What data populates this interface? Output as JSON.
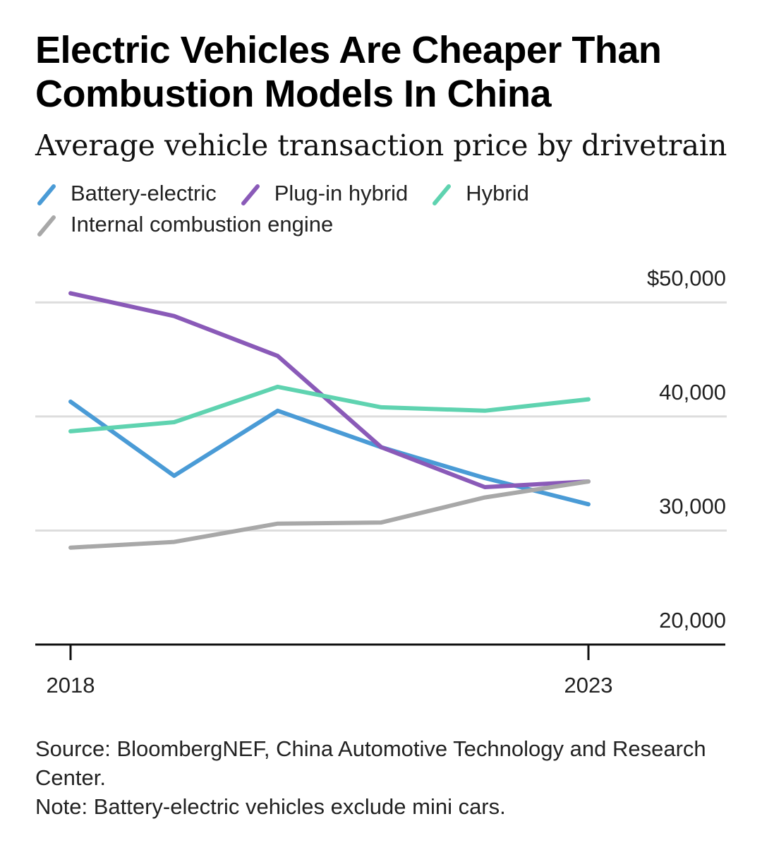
{
  "title": "Electric Vehicles Are Cheaper Than Combustion Models In China",
  "subtitle": "Average vehicle transaction price by drivetrain",
  "legend": [
    {
      "name": "Battery-electric",
      "color": "#4a9bd6"
    },
    {
      "name": "Plug-in hybrid",
      "color": "#8a5ab8"
    },
    {
      "name": "Hybrid",
      "color": "#5fd3b0"
    },
    {
      "name": "Internal combustion engine",
      "color": "#a8a8a8"
    }
  ],
  "chart_data": {
    "type": "line",
    "x": [
      2018,
      2019,
      2020,
      2021,
      2022,
      2023
    ],
    "x_tick_labels": [
      "2018",
      "2023"
    ],
    "y_tick_labels": [
      "$50,000",
      "40,000",
      "30,000",
      "20,000"
    ],
    "y_ticks": [
      50000,
      40000,
      30000,
      20000
    ],
    "ylim": [
      20000,
      52000
    ],
    "series": [
      {
        "name": "Battery-electric",
        "color": "#4a9bd6",
        "values": [
          41300,
          34800,
          40500,
          37300,
          34600,
          32300
        ]
      },
      {
        "name": "Plug-in hybrid",
        "color": "#8a5ab8",
        "values": [
          50800,
          48800,
          45300,
          37300,
          33800,
          34300
        ]
      },
      {
        "name": "Hybrid",
        "color": "#5fd3b0",
        "values": [
          38700,
          39500,
          42600,
          40800,
          40500,
          41500
        ]
      },
      {
        "name": "Internal combustion engine",
        "color": "#a8a8a8",
        "values": [
          28500,
          29000,
          30600,
          30700,
          32900,
          34300
        ]
      }
    ],
    "xlabel": "",
    "ylabel": ""
  },
  "footnotes": {
    "source": "Source: BloombergNEF, China Automotive Technology and Research Center.",
    "note": "Note: Battery-electric vehicles exclude mini cars."
  }
}
